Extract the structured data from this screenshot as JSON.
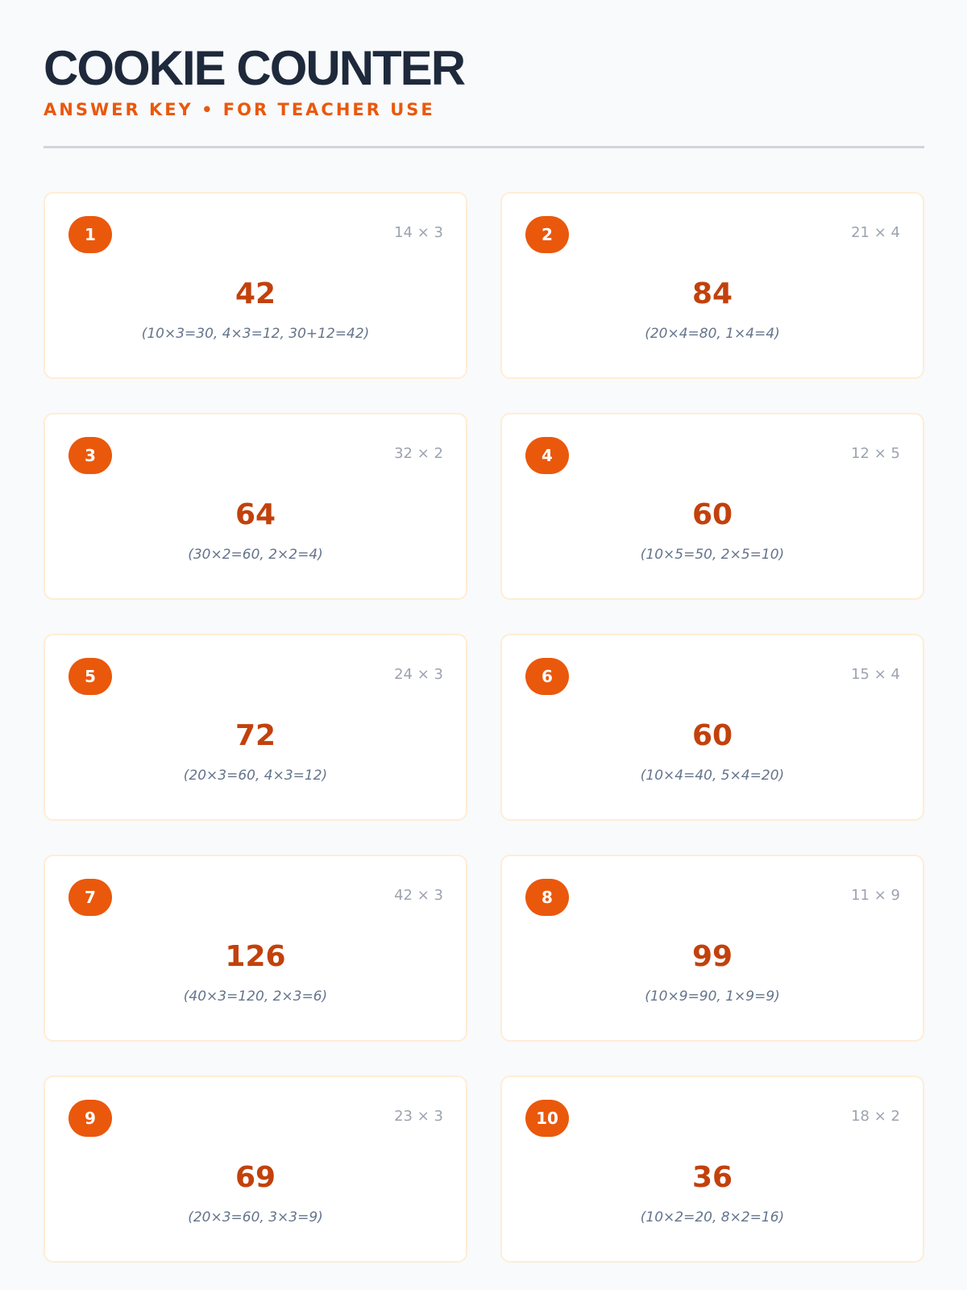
{
  "header": {
    "title": "COOKIE COUNTER",
    "subtitle": "ANSWER KEY • FOR TEACHER USE"
  },
  "colors": {
    "accent": "#ea580c",
    "answer": "#c2410c",
    "title": "#1e293b"
  },
  "problems": [
    {
      "number": "1",
      "problem": "14 × 3",
      "answer": "42",
      "work": "(10×3=30, 4×3=12, 30+12=42)"
    },
    {
      "number": "2",
      "problem": "21 × 4",
      "answer": "84",
      "work": "(20×4=80, 1×4=4)"
    },
    {
      "number": "3",
      "problem": "32 × 2",
      "answer": "64",
      "work": "(30×2=60, 2×2=4)"
    },
    {
      "number": "4",
      "problem": "12 × 5",
      "answer": "60",
      "work": "(10×5=50, 2×5=10)"
    },
    {
      "number": "5",
      "problem": "24 × 3",
      "answer": "72",
      "work": "(20×3=60, 4×3=12)"
    },
    {
      "number": "6",
      "problem": "15 × 4",
      "answer": "60",
      "work": "(10×4=40, 5×4=20)"
    },
    {
      "number": "7",
      "problem": "42 × 3",
      "answer": "126",
      "work": "(40×3=120, 2×3=6)"
    },
    {
      "number": "8",
      "problem": "11 × 9",
      "answer": "99",
      "work": "(10×9=90, 1×9=9)"
    },
    {
      "number": "9",
      "problem": "23 × 3",
      "answer": "69",
      "work": "(20×3=60, 3×3=9)"
    },
    {
      "number": "10",
      "problem": "18 × 2",
      "answer": "36",
      "work": "(10×2=20, 8×2=16)"
    }
  ]
}
